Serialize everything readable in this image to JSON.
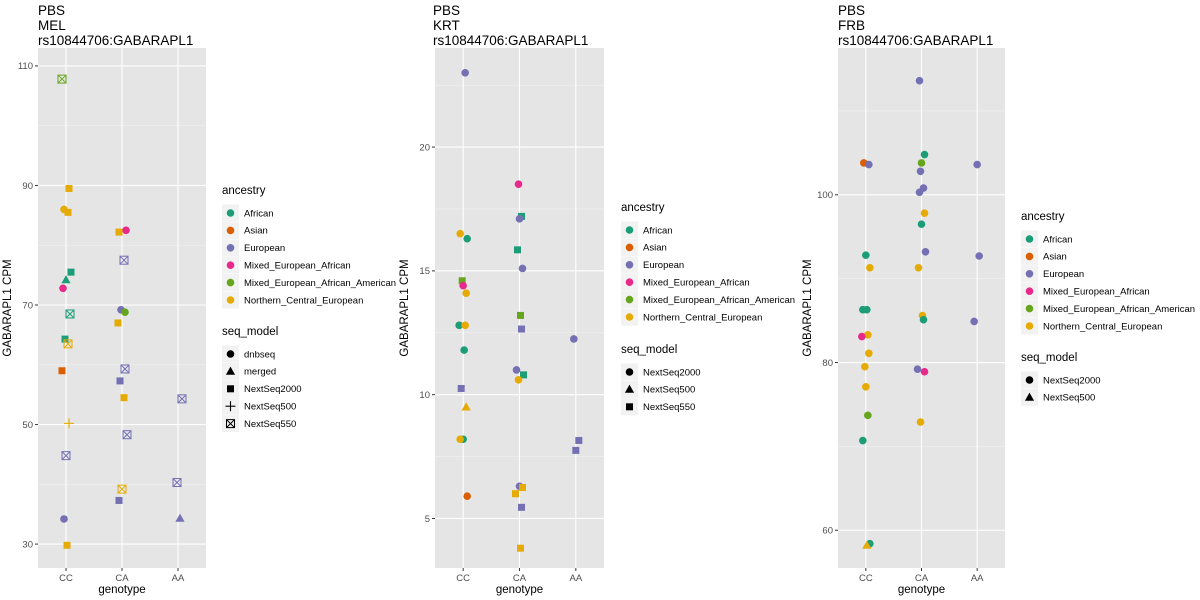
{
  "colors": {
    "African": "#1b9e77",
    "Asian": "#d95f02",
    "European": "#7570b3",
    "Mixed_European_African": "#e7298a",
    "Mixed_European_African_American": "#66a61e",
    "Northern_Central_European": "#e6ab02"
  },
  "chart_data": [
    {
      "type": "scatter",
      "title": [
        "PBS",
        "MEL",
        "rs10844706:GABARAPL1"
      ],
      "xlabel": "genotype",
      "ylabel": "GABARAPL1 CPM",
      "categories": [
        "CC",
        "CA",
        "AA"
      ],
      "ylim": [
        26,
        113
      ],
      "yticks": [
        30,
        50,
        70,
        90,
        110
      ],
      "grid": true,
      "legend_position": "right",
      "legend": {
        "ancestry_title": "ancestry",
        "ancestry": [
          "African",
          "Asian",
          "European",
          "Mixed_European_African",
          "Mixed_European_African_American",
          "Northern_Central_European"
        ],
        "seq_title": "seq_model",
        "seq": [
          {
            "name": "dnbseq",
            "shape": "circle"
          },
          {
            "name": "merged",
            "shape": "triangle"
          },
          {
            "name": "NextSeq2000",
            "shape": "square"
          },
          {
            "name": "NextSeq500",
            "shape": "plus"
          },
          {
            "name": "NextSeq550",
            "shape": "boxx"
          }
        ]
      },
      "points": [
        {
          "x": "CC",
          "y": 107.8,
          "ancestry": "Mixed_European_African_American",
          "seq": "NextSeq550"
        },
        {
          "x": "CC",
          "y": 89.5,
          "ancestry": "Northern_Central_European",
          "seq": "NextSeq2000"
        },
        {
          "x": "CC",
          "y": 86.0,
          "ancestry": "Northern_Central_European",
          "seq": "dnbseq"
        },
        {
          "x": "CC",
          "y": 85.5,
          "ancestry": "Northern_Central_European",
          "seq": "NextSeq2000"
        },
        {
          "x": "CC",
          "y": 75.5,
          "ancestry": "African",
          "seq": "NextSeq2000"
        },
        {
          "x": "CC",
          "y": 74.2,
          "ancestry": "African",
          "seq": "merged"
        },
        {
          "x": "CC",
          "y": 72.8,
          "ancestry": "Mixed_European_African",
          "seq": "dnbseq"
        },
        {
          "x": "CC",
          "y": 68.5,
          "ancestry": "African",
          "seq": "NextSeq550"
        },
        {
          "x": "CC",
          "y": 64.3,
          "ancestry": "African",
          "seq": "NextSeq2000"
        },
        {
          "x": "CC",
          "y": 63.5,
          "ancestry": "Northern_Central_European",
          "seq": "NextSeq550"
        },
        {
          "x": "CC",
          "y": 59.0,
          "ancestry": "Asian",
          "seq": "NextSeq2000"
        },
        {
          "x": "CC",
          "y": 50.2,
          "ancestry": "Northern_Central_European",
          "seq": "NextSeq500"
        },
        {
          "x": "CC",
          "y": 44.8,
          "ancestry": "European",
          "seq": "NextSeq550"
        },
        {
          "x": "CC",
          "y": 34.2,
          "ancestry": "European",
          "seq": "dnbseq"
        },
        {
          "x": "CC",
          "y": 29.8,
          "ancestry": "Northern_Central_European",
          "seq": "NextSeq2000"
        },
        {
          "x": "CA",
          "y": 82.5,
          "ancestry": "Mixed_European_African",
          "seq": "dnbseq"
        },
        {
          "x": "CA",
          "y": 82.2,
          "ancestry": "Northern_Central_European",
          "seq": "NextSeq2000"
        },
        {
          "x": "CA",
          "y": 77.5,
          "ancestry": "European",
          "seq": "NextSeq550"
        },
        {
          "x": "CA",
          "y": 69.2,
          "ancestry": "European",
          "seq": "dnbseq"
        },
        {
          "x": "CA",
          "y": 68.8,
          "ancestry": "Mixed_European_African_American",
          "seq": "dnbseq"
        },
        {
          "x": "CA",
          "y": 67.0,
          "ancestry": "Northern_Central_European",
          "seq": "NextSeq2000"
        },
        {
          "x": "CA",
          "y": 59.3,
          "ancestry": "European",
          "seq": "NextSeq550"
        },
        {
          "x": "CA",
          "y": 57.3,
          "ancestry": "European",
          "seq": "NextSeq2000"
        },
        {
          "x": "CA",
          "y": 54.5,
          "ancestry": "Northern_Central_European",
          "seq": "NextSeq2000"
        },
        {
          "x": "CA",
          "y": 48.3,
          "ancestry": "European",
          "seq": "NextSeq550"
        },
        {
          "x": "CA",
          "y": 39.2,
          "ancestry": "Northern_Central_European",
          "seq": "NextSeq550"
        },
        {
          "x": "CA",
          "y": 37.3,
          "ancestry": "European",
          "seq": "NextSeq2000"
        },
        {
          "x": "AA",
          "y": 54.3,
          "ancestry": "European",
          "seq": "NextSeq550"
        },
        {
          "x": "AA",
          "y": 40.3,
          "ancestry": "European",
          "seq": "NextSeq550"
        },
        {
          "x": "AA",
          "y": 34.3,
          "ancestry": "European",
          "seq": "merged"
        }
      ]
    },
    {
      "type": "scatter",
      "title": [
        "PBS",
        "KRT",
        "rs10844706:GABARAPL1"
      ],
      "xlabel": "genotype",
      "ylabel": "GABARAPL1 CPM",
      "categories": [
        "CC",
        "CA",
        "AA"
      ],
      "ylim": [
        3.0,
        24.0
      ],
      "yticks": [
        5,
        10,
        15,
        20
      ],
      "grid": true,
      "legend_position": "right",
      "legend": {
        "ancestry_title": "ancestry",
        "ancestry": [
          "African",
          "Asian",
          "European",
          "Mixed_European_African",
          "Mixed_European_African_American",
          "Northern_Central_European"
        ],
        "seq_title": "seq_model",
        "seq": [
          {
            "name": "NextSeq2000",
            "shape": "circle"
          },
          {
            "name": "NextSeq500",
            "shape": "triangle"
          },
          {
            "name": "NextSeq550",
            "shape": "square"
          }
        ]
      },
      "points": [
        {
          "x": "CC",
          "y": 23.0,
          "ancestry": "European",
          "seq": "NextSeq2000"
        },
        {
          "x": "CC",
          "y": 16.5,
          "ancestry": "Northern_Central_European",
          "seq": "NextSeq2000"
        },
        {
          "x": "CC",
          "y": 16.3,
          "ancestry": "African",
          "seq": "NextSeq2000"
        },
        {
          "x": "CC",
          "y": 14.6,
          "ancestry": "Mixed_European_African_American",
          "seq": "NextSeq550"
        },
        {
          "x": "CC",
          "y": 14.4,
          "ancestry": "Mixed_European_African",
          "seq": "NextSeq2000"
        },
        {
          "x": "CC",
          "y": 14.1,
          "ancestry": "Northern_Central_European",
          "seq": "NextSeq2000"
        },
        {
          "x": "CC",
          "y": 12.8,
          "ancestry": "African",
          "seq": "NextSeq2000"
        },
        {
          "x": "CC",
          "y": 12.8,
          "ancestry": "Northern_Central_European",
          "seq": "NextSeq2000"
        },
        {
          "x": "CC",
          "y": 11.8,
          "ancestry": "African",
          "seq": "NextSeq2000"
        },
        {
          "x": "CC",
          "y": 10.25,
          "ancestry": "European",
          "seq": "NextSeq550"
        },
        {
          "x": "CC",
          "y": 9.5,
          "ancestry": "Northern_Central_European",
          "seq": "NextSeq500"
        },
        {
          "x": "CC",
          "y": 8.2,
          "ancestry": "African",
          "seq": "NextSeq2000"
        },
        {
          "x": "CC",
          "y": 8.2,
          "ancestry": "Northern_Central_European",
          "seq": "NextSeq2000"
        },
        {
          "x": "CC",
          "y": 5.9,
          "ancestry": "Asian",
          "seq": "NextSeq2000"
        },
        {
          "x": "CA",
          "y": 18.5,
          "ancestry": "Mixed_European_African",
          "seq": "NextSeq2000"
        },
        {
          "x": "CA",
          "y": 17.2,
          "ancestry": "African",
          "seq": "NextSeq550"
        },
        {
          "x": "CA",
          "y": 17.1,
          "ancestry": "European",
          "seq": "NextSeq2000"
        },
        {
          "x": "CA",
          "y": 15.85,
          "ancestry": "African",
          "seq": "NextSeq550"
        },
        {
          "x": "CA",
          "y": 15.1,
          "ancestry": "European",
          "seq": "NextSeq2000"
        },
        {
          "x": "CA",
          "y": 13.2,
          "ancestry": "Mixed_European_African_American",
          "seq": "NextSeq550"
        },
        {
          "x": "CA",
          "y": 12.65,
          "ancestry": "European",
          "seq": "NextSeq550"
        },
        {
          "x": "CA",
          "y": 11.0,
          "ancestry": "European",
          "seq": "NextSeq2000"
        },
        {
          "x": "CA",
          "y": 10.8,
          "ancestry": "African",
          "seq": "NextSeq550"
        },
        {
          "x": "CA",
          "y": 10.6,
          "ancestry": "Northern_Central_European",
          "seq": "NextSeq2000"
        },
        {
          "x": "CA",
          "y": 6.3,
          "ancestry": "European",
          "seq": "NextSeq2000"
        },
        {
          "x": "CA",
          "y": 6.25,
          "ancestry": "Northern_Central_European",
          "seq": "NextSeq550"
        },
        {
          "x": "CA",
          "y": 6.0,
          "ancestry": "Northern_Central_European",
          "seq": "NextSeq550"
        },
        {
          "x": "CA",
          "y": 5.45,
          "ancestry": "European",
          "seq": "NextSeq550"
        },
        {
          "x": "CA",
          "y": 3.8,
          "ancestry": "Northern_Central_European",
          "seq": "NextSeq550"
        },
        {
          "x": "AA",
          "y": 12.25,
          "ancestry": "European",
          "seq": "NextSeq2000"
        },
        {
          "x": "AA",
          "y": 8.15,
          "ancestry": "European",
          "seq": "NextSeq550"
        },
        {
          "x": "AA",
          "y": 7.75,
          "ancestry": "European",
          "seq": "NextSeq550"
        }
      ]
    },
    {
      "type": "scatter",
      "title": [
        "PBS",
        "FRB",
        "rs10844706:GABARAPL1"
      ],
      "xlabel": "genotype",
      "ylabel": "GABARAPL1 CPM",
      "categories": [
        "CC",
        "CA",
        "AA"
      ],
      "ylim": [
        55.5,
        117.5
      ],
      "yticks": [
        60,
        80,
        100
      ],
      "grid": true,
      "legend_position": "right",
      "legend": {
        "ancestry_title": "ancestry",
        "ancestry": [
          "African",
          "Asian",
          "European",
          "Mixed_European_African",
          "Mixed_European_African_American",
          "Northern_Central_European"
        ],
        "seq_title": "seq_model",
        "seq": [
          {
            "name": "NextSeq2000",
            "shape": "circle"
          },
          {
            "name": "NextSeq500",
            "shape": "triangle"
          }
        ]
      },
      "points": [
        {
          "x": "CC",
          "y": 103.8,
          "ancestry": "Asian",
          "seq": "NextSeq2000"
        },
        {
          "x": "CC",
          "y": 103.6,
          "ancestry": "European",
          "seq": "NextSeq2000"
        },
        {
          "x": "CC",
          "y": 92.8,
          "ancestry": "African",
          "seq": "NextSeq2000"
        },
        {
          "x": "CC",
          "y": 91.3,
          "ancestry": "Northern_Central_European",
          "seq": "NextSeq2000"
        },
        {
          "x": "CC",
          "y": 86.3,
          "ancestry": "African",
          "seq": "NextSeq2000"
        },
        {
          "x": "CC",
          "y": 86.3,
          "ancestry": "African",
          "seq": "NextSeq2000"
        },
        {
          "x": "CC",
          "y": 83.3,
          "ancestry": "Northern_Central_European",
          "seq": "NextSeq2000"
        },
        {
          "x": "CC",
          "y": 83.1,
          "ancestry": "Mixed_European_African",
          "seq": "NextSeq2000"
        },
        {
          "x": "CC",
          "y": 81.1,
          "ancestry": "Northern_Central_European",
          "seq": "NextSeq2000"
        },
        {
          "x": "CC",
          "y": 79.5,
          "ancestry": "Northern_Central_European",
          "seq": "NextSeq2000"
        },
        {
          "x": "CC",
          "y": 77.1,
          "ancestry": "Northern_Central_European",
          "seq": "NextSeq2000"
        },
        {
          "x": "CC",
          "y": 73.7,
          "ancestry": "Mixed_European_African_American",
          "seq": "NextSeq2000"
        },
        {
          "x": "CC",
          "y": 70.7,
          "ancestry": "African",
          "seq": "NextSeq2000"
        },
        {
          "x": "CC",
          "y": 58.4,
          "ancestry": "African",
          "seq": "NextSeq2000"
        },
        {
          "x": "CC",
          "y": 58.2,
          "ancestry": "Northern_Central_European",
          "seq": "NextSeq500"
        },
        {
          "x": "CA",
          "y": 113.6,
          "ancestry": "European",
          "seq": "NextSeq2000"
        },
        {
          "x": "CA",
          "y": 104.8,
          "ancestry": "African",
          "seq": "NextSeq2000"
        },
        {
          "x": "CA",
          "y": 103.8,
          "ancestry": "Mixed_European_African_American",
          "seq": "NextSeq2000"
        },
        {
          "x": "CA",
          "y": 102.8,
          "ancestry": "European",
          "seq": "NextSeq2000"
        },
        {
          "x": "CA",
          "y": 100.8,
          "ancestry": "European",
          "seq": "NextSeq2000"
        },
        {
          "x": "CA",
          "y": 100.3,
          "ancestry": "European",
          "seq": "NextSeq2000"
        },
        {
          "x": "CA",
          "y": 97.8,
          "ancestry": "Northern_Central_European",
          "seq": "NextSeq2000"
        },
        {
          "x": "CA",
          "y": 96.5,
          "ancestry": "African",
          "seq": "NextSeq2000"
        },
        {
          "x": "CA",
          "y": 93.2,
          "ancestry": "European",
          "seq": "NextSeq2000"
        },
        {
          "x": "CA",
          "y": 91.3,
          "ancestry": "Northern_Central_European",
          "seq": "NextSeq2000"
        },
        {
          "x": "CA",
          "y": 85.6,
          "ancestry": "Northern_Central_European",
          "seq": "NextSeq2000"
        },
        {
          "x": "CA",
          "y": 85.1,
          "ancestry": "African",
          "seq": "NextSeq2000"
        },
        {
          "x": "CA",
          "y": 79.2,
          "ancestry": "European",
          "seq": "NextSeq2000"
        },
        {
          "x": "CA",
          "y": 78.9,
          "ancestry": "Mixed_European_African",
          "seq": "NextSeq2000"
        },
        {
          "x": "CA",
          "y": 72.9,
          "ancestry": "Northern_Central_European",
          "seq": "NextSeq2000"
        },
        {
          "x": "AA",
          "y": 103.6,
          "ancestry": "European",
          "seq": "NextSeq2000"
        },
        {
          "x": "AA",
          "y": 92.7,
          "ancestry": "European",
          "seq": "NextSeq2000"
        },
        {
          "x": "AA",
          "y": 84.9,
          "ancestry": "European",
          "seq": "NextSeq2000"
        }
      ]
    }
  ]
}
